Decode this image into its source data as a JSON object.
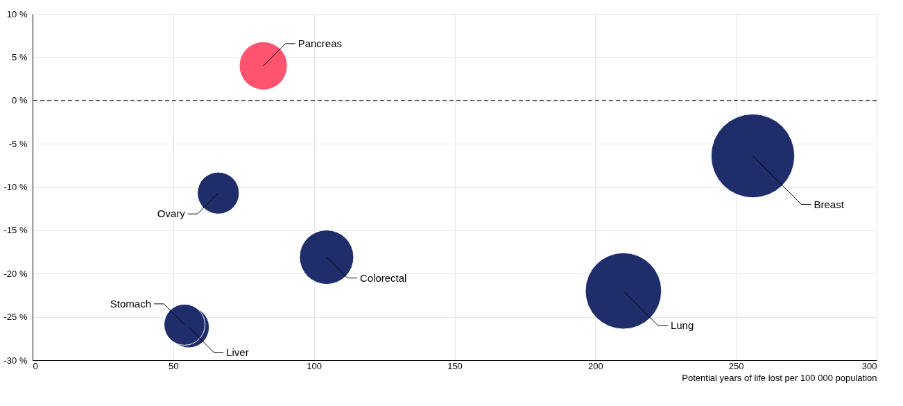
{
  "chart_data": {
    "type": "bubble",
    "xlabel": "Potential years of life lost per 100 000 population",
    "xlim": [
      0,
      300
    ],
    "xticks": [
      0,
      50,
      100,
      150,
      200,
      250,
      300
    ],
    "ylim": [
      -30,
      10
    ],
    "yticks": [
      {
        "value": -30,
        "label": "-30 %"
      },
      {
        "value": -25,
        "label": "-25 %"
      },
      {
        "value": -20,
        "label": "-20 %"
      },
      {
        "value": -15,
        "label": "-15 %"
      },
      {
        "value": -10,
        "label": "-10 %"
      },
      {
        "value": -5,
        "label": "-5 %"
      },
      {
        "value": 0,
        "label": "0 %"
      },
      {
        "value": 5,
        "label": "5 %"
      },
      {
        "value": 10,
        "label": "10 %"
      }
    ],
    "grid": true,
    "ref_lines": [
      {
        "axis": "y",
        "value": 0,
        "line_style": "dashed",
        "color": "#000000"
      }
    ],
    "series": [
      {
        "name": "Pancreas",
        "color": "#ff5470",
        "x": [
          82
        ],
        "values": [
          4.0
        ],
        "sizes": [
          0.33
        ]
      },
      {
        "name": "Ovary",
        "color": "#1f2d6b",
        "x": [
          66
        ],
        "values": [
          -10.7
        ],
        "sizes": [
          0.25
        ]
      },
      {
        "name": "Colorectal",
        "color": "#1f2d6b",
        "x": [
          104.5
        ],
        "values": [
          -18.1
        ],
        "sizes": [
          0.42
        ]
      },
      {
        "name": "Liver",
        "color": "#1f2d6b",
        "x": [
          55.5
        ],
        "values": [
          -26.2
        ],
        "sizes": [
          0.24
        ]
      },
      {
        "name": "Stomach",
        "color": "#1f2d6b",
        "x": [
          54
        ],
        "values": [
          -25.9
        ],
        "sizes": [
          0.24
        ]
      },
      {
        "name": "Lung",
        "color": "#1f2d6b",
        "x": [
          210
        ],
        "values": [
          -22.0
        ],
        "sizes": [
          0.83
        ]
      },
      {
        "name": "Breast",
        "color": "#1f2d6b",
        "x": [
          256
        ],
        "values": [
          -6.4
        ],
        "sizes": [
          1.0
        ]
      }
    ]
  }
}
